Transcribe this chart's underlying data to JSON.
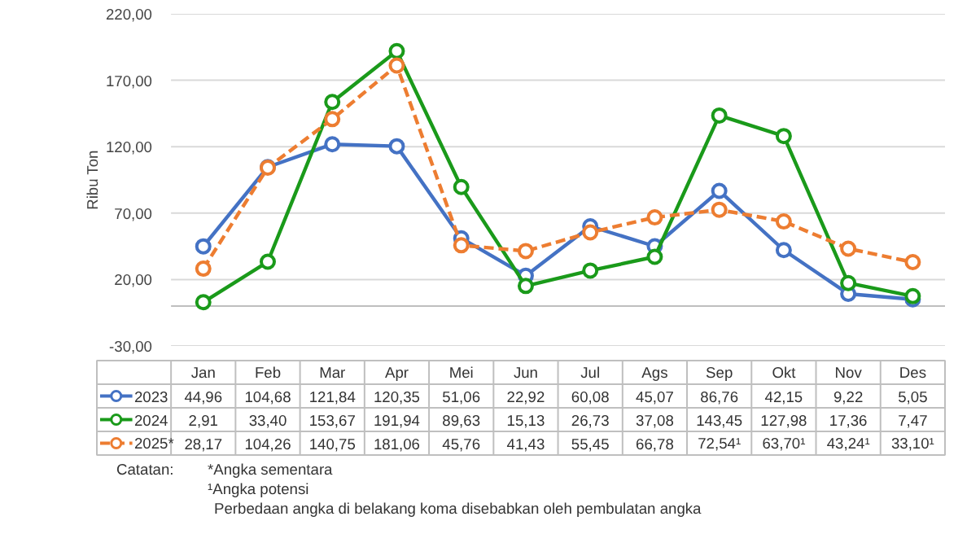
{
  "chart_data": {
    "type": "line",
    "ylabel": "Ribu Ton",
    "categories": [
      "Jan",
      "Feb",
      "Mar",
      "Apr",
      "Mei",
      "Jun",
      "Jul",
      "Ags",
      "Sep",
      "Okt",
      "Nov",
      "Des"
    ],
    "series": [
      {
        "name": "2023",
        "color": "#4472c4",
        "values": [
          44.96,
          104.68,
          121.84,
          120.35,
          51.06,
          22.92,
          60.08,
          45.07,
          86.76,
          42.15,
          9.22,
          5.05
        ],
        "value_labels": [
          "44,96",
          "104,68",
          "121,84",
          "120,35",
          "51,06",
          "22,92",
          "60,08",
          "45,07",
          "86,76",
          "42,15",
          "9,22",
          "5,05"
        ]
      },
      {
        "name": "2024",
        "color": "#1a9a1a",
        "values": [
          2.91,
          33.4,
          153.67,
          191.94,
          89.63,
          15.13,
          26.73,
          37.08,
          143.45,
          127.98,
          17.36,
          7.47
        ],
        "value_labels": [
          "2,91",
          "33,40",
          "153,67",
          "191,94",
          "89,63",
          "15,13",
          "26,73",
          "37,08",
          "143,45",
          "127,98",
          "17,36",
          "7,47"
        ]
      },
      {
        "name": "2025*",
        "color": "#ed7d31",
        "line_style": "dashed",
        "values": [
          28.17,
          104.26,
          140.75,
          181.06,
          45.76,
          41.43,
          55.45,
          66.78,
          72.54,
          63.7,
          43.24,
          33.1
        ],
        "value_labels": [
          "28,17",
          "104,26",
          "140,75",
          "181,06",
          "45,76",
          "41,43",
          "55,45",
          "66,78",
          "72,54¹",
          "63,70¹",
          "43,24¹",
          "33,10¹"
        ]
      }
    ],
    "ylim": [
      -30,
      220
    ],
    "yticks": [
      {
        "value": -30,
        "label": "-30,00"
      },
      {
        "value": 20,
        "label": "20,00"
      },
      {
        "value": 70,
        "label": "70,00"
      },
      {
        "value": 120,
        "label": "120,00"
      },
      {
        "value": 170,
        "label": "170,00"
      },
      {
        "value": 220,
        "label": "220,00"
      }
    ],
    "ref_lines": [
      {
        "axis": "y",
        "value": 0,
        "color": "#bfbfbf"
      }
    ],
    "grid": "y",
    "marker": "circle",
    "line_style": "solid",
    "legend": "bottom",
    "annotations": [
      "Catatan:",
      "*Angka sementara",
      "¹Angka potensi",
      "Perbedaan angka di belakang koma disebabkan oleh pembulatan angka"
    ]
  }
}
